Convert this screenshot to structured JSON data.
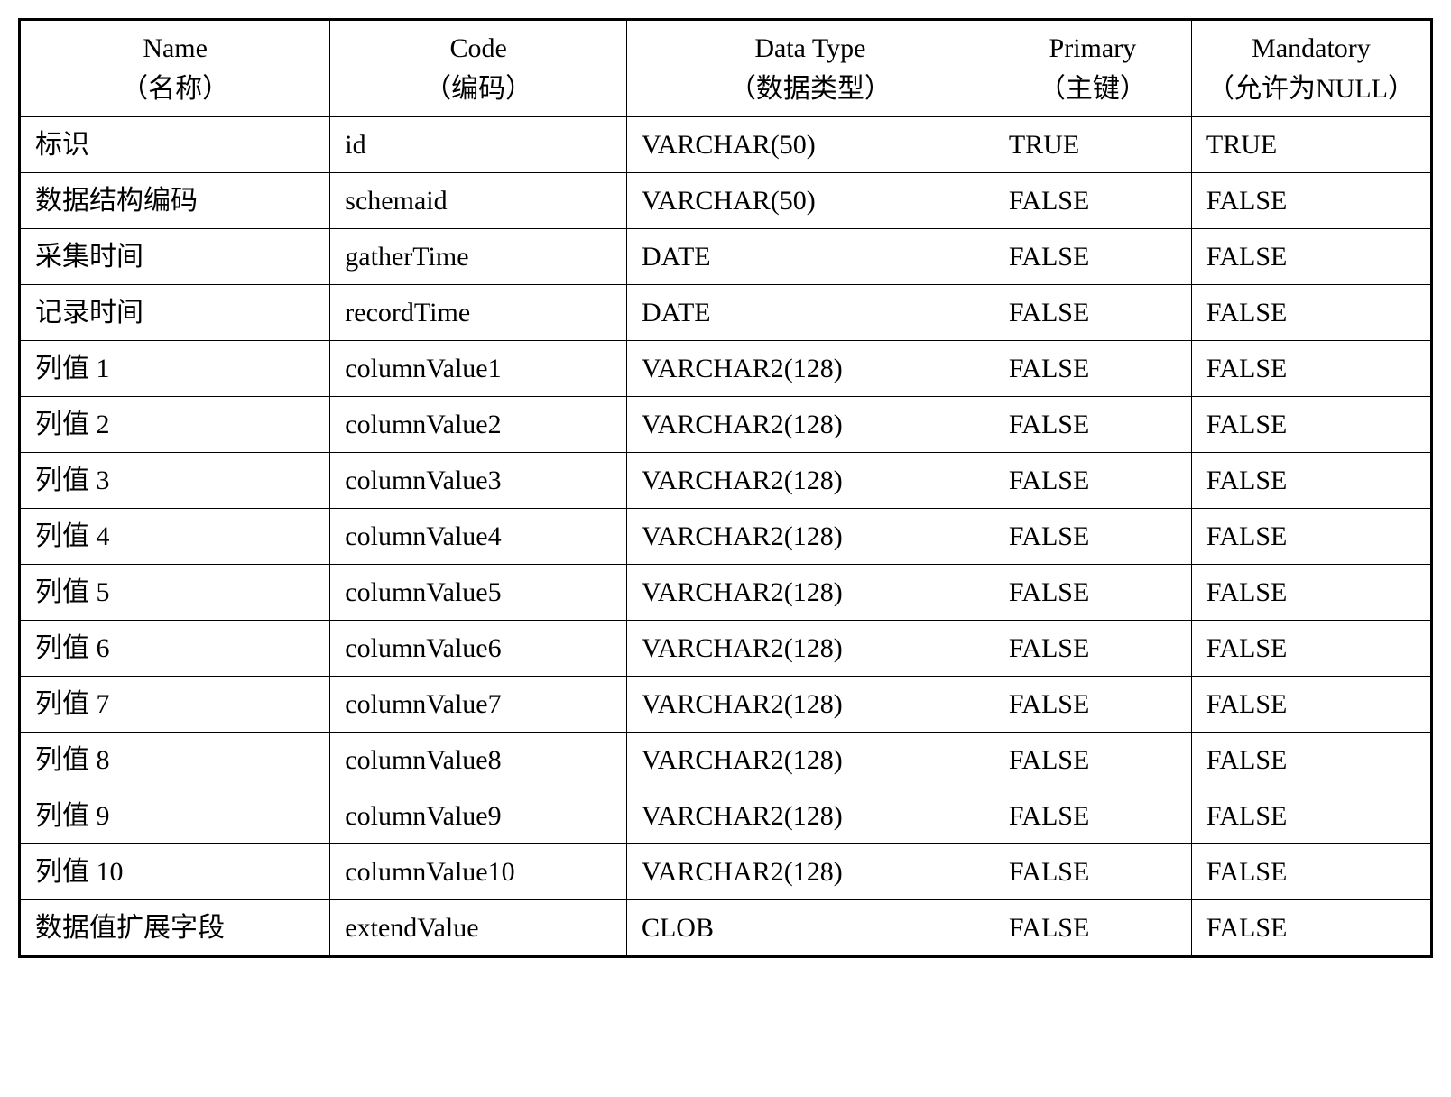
{
  "table": {
    "columns": [
      {
        "en": "Name",
        "zh": "（名称）",
        "class": "col-name"
      },
      {
        "en": "Code",
        "zh": "（编码）",
        "class": "col-code"
      },
      {
        "en": "Data Type",
        "zh": "（数据类型）",
        "class": "col-datatype"
      },
      {
        "en": "Primary",
        "zh": "（主键）",
        "class": "col-primary"
      },
      {
        "en": "Mandatory",
        "zh": "（允许为NULL）",
        "class": "col-mandatory"
      }
    ],
    "rows": [
      {
        "name": "标识",
        "code": "id",
        "datatype": "VARCHAR(50)",
        "primary": "TRUE",
        "mandatory": "TRUE"
      },
      {
        "name": "数据结构编码",
        "code": "schemaid",
        "datatype": "VARCHAR(50)",
        "primary": "FALSE",
        "mandatory": "FALSE"
      },
      {
        "name": "采集时间",
        "code": "gatherTime",
        "datatype": "DATE",
        "primary": "FALSE",
        "mandatory": "FALSE"
      },
      {
        "name": "记录时间",
        "code": "recordTime",
        "datatype": "DATE",
        "primary": "FALSE",
        "mandatory": "FALSE"
      },
      {
        "name": "列值 1",
        "code": "columnValue1",
        "datatype": "VARCHAR2(128)",
        "primary": "FALSE",
        "mandatory": "FALSE"
      },
      {
        "name": "列值 2",
        "code": "columnValue2",
        "datatype": "VARCHAR2(128)",
        "primary": "FALSE",
        "mandatory": "FALSE"
      },
      {
        "name": "列值 3",
        "code": "columnValue3",
        "datatype": "VARCHAR2(128)",
        "primary": "FALSE",
        "mandatory": "FALSE"
      },
      {
        "name": "列值 4",
        "code": "columnValue4",
        "datatype": "VARCHAR2(128)",
        "primary": "FALSE",
        "mandatory": "FALSE"
      },
      {
        "name": "列值 5",
        "code": "columnValue5",
        "datatype": "VARCHAR2(128)",
        "primary": "FALSE",
        "mandatory": "FALSE"
      },
      {
        "name": "列值 6",
        "code": "columnValue6",
        "datatype": "VARCHAR2(128)",
        "primary": "FALSE",
        "mandatory": "FALSE"
      },
      {
        "name": "列值 7",
        "code": "columnValue7",
        "datatype": "VARCHAR2(128)",
        "primary": "FALSE",
        "mandatory": "FALSE"
      },
      {
        "name": "列值 8",
        "code": "columnValue8",
        "datatype": "VARCHAR2(128)",
        "primary": "FALSE",
        "mandatory": "FALSE"
      },
      {
        "name": "列值 9",
        "code": "columnValue9",
        "datatype": "VARCHAR2(128)",
        "primary": "FALSE",
        "mandatory": "FALSE"
      },
      {
        "name": "列值 10",
        "code": "columnValue10",
        "datatype": "VARCHAR2(128)",
        "primary": "FALSE",
        "mandatory": "FALSE"
      },
      {
        "name": "数据值扩展字段",
        "code": "extendValue",
        "datatype": "CLOB",
        "primary": "FALSE",
        "mandatory": "FALSE"
      }
    ],
    "styling": {
      "border_color": "#000000",
      "outer_border_width": 3,
      "inner_border_width": 1,
      "background_color": "#ffffff",
      "font_family": "Times New Roman, SimSun, serif",
      "font_size": 30,
      "cell_padding": "8px 16px",
      "header_align": "center",
      "body_align": "left"
    }
  }
}
